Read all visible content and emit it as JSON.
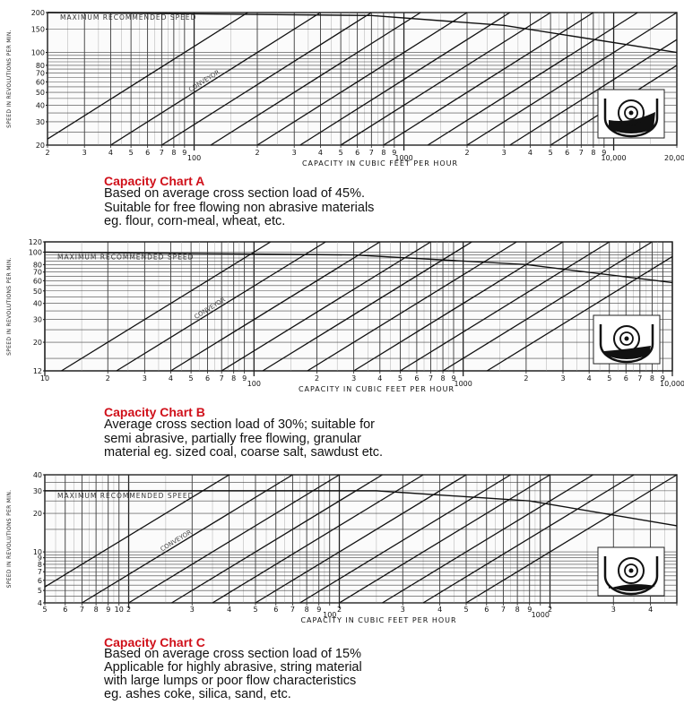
{
  "chart_data": [
    {
      "id": "A",
      "type": "line",
      "x_scale": "log",
      "y_scale": "log",
      "xlim": [
        20,
        20000
      ],
      "ylim": [
        20,
        200
      ],
      "xlabel": "CAPACITY IN CUBIC FEET PER HOUR",
      "ylabel": "SPEED IN REVOLUTIONS PER MIN.",
      "x_tick_labels": [
        "2",
        "3",
        "4",
        "5",
        "6",
        "7",
        "8",
        "9",
        "100",
        "2",
        "3",
        "4",
        "5",
        "6",
        "7",
        "8",
        "9",
        "1000",
        "2",
        "3",
        "4",
        "5",
        "6",
        "7",
        "8",
        "9",
        "10,000",
        "20,000"
      ],
      "y_tick_labels": [
        "200",
        "150",
        "100",
        "80",
        "70",
        "60",
        "50",
        "40",
        "30",
        "20"
      ],
      "max_speed_label": "MAXIMUM RECOMMENDED SPEED",
      "diagonal_label": "CONVEYOR",
      "max_speed_curve": [
        [
          20,
          200
        ],
        [
          700,
          190
        ],
        [
          3000,
          160
        ],
        [
          20000,
          100
        ]
      ],
      "diagonal_intercepts": [
        18,
        40,
        70,
        120,
        200,
        320,
        500,
        800,
        1300,
        2000,
        3200,
        5000
      ],
      "caption_title": "Capacity Chart A",
      "caption_lines": [
        "Based on average cross section load of 45%.",
        "Suitable for free flowing non abrasive materials",
        "eg. flour, corn-meal, wheat, etc."
      ]
    },
    {
      "id": "B",
      "type": "line",
      "x_scale": "log",
      "y_scale": "log",
      "xlim": [
        10,
        10000
      ],
      "ylim": [
        12,
        120
      ],
      "xlabel": "CAPACITY IN CUBIC FEET PER HOUR",
      "ylabel": "SPEED IN REVOLUTIONS PER MIN.",
      "x_tick_labels": [
        "10",
        "2",
        "3",
        "4",
        "5",
        "6",
        "7",
        "8",
        "9",
        "100",
        "2",
        "3",
        "4",
        "5",
        "6",
        "7",
        "8",
        "9",
        "1000",
        "2",
        "3",
        "4",
        "5",
        "6",
        "7",
        "8",
        "9",
        "10,000"
      ],
      "y_tick_labels": [
        "120",
        "100",
        "80",
        "70",
        "60",
        "50",
        "40",
        "30",
        "20",
        "12"
      ],
      "max_speed_label": "MAXIMUM RECOMMENDED SPEED",
      "diagonal_label": "CONVEYOR",
      "max_speed_curve": [
        [
          10,
          100
        ],
        [
          300,
          95
        ],
        [
          2000,
          80
        ],
        [
          10000,
          58
        ]
      ],
      "diagonal_intercepts": [
        12,
        22,
        40,
        70,
        110,
        180,
        300,
        500,
        800,
        1300
      ],
      "caption_title": "Capacity Chart B",
      "caption_lines": [
        "Average cross section load of 30%; suitable for",
        "semi abrasive, partially free flowing, granular",
        "material eg. sized coal, coarse salt, sawdust etc."
      ]
    },
    {
      "id": "C",
      "type": "line",
      "x_scale": "log",
      "y_scale": "log",
      "xlim": [
        4,
        4000
      ],
      "ylim": [
        4,
        40
      ],
      "xlabel": "CAPACITY IN CUBIC FEET PER HOUR",
      "ylabel": "SPEED IN REVOLUTIONS PER MIN.",
      "x_tick_labels": [
        "5",
        "6",
        "7",
        "8",
        "9",
        "10",
        "2",
        "3",
        "4",
        "5",
        "6",
        "7",
        "8",
        "9",
        "100",
        "2",
        "3",
        "4",
        "5",
        "6",
        "7",
        "8",
        "9",
        "1000",
        "2",
        "3",
        "4"
      ],
      "y_tick_labels": [
        "40",
        "30",
        "20",
        "10",
        "9",
        "8",
        "7",
        "6",
        "5",
        "4"
      ],
      "max_speed_label": "MAXIMUM RECOMMENDED SPEED",
      "diagonal_label": "CONVEYOR",
      "max_speed_curve": [
        [
          4,
          30
        ],
        [
          150,
          30
        ],
        [
          800,
          25
        ],
        [
          4000,
          16
        ]
      ],
      "diagonal_intercepts": [
        3,
        6,
        10,
        16,
        25,
        40,
        65,
        100,
        160,
        250,
        400
      ],
      "caption_title": "Capacity Chart C",
      "caption_lines": [
        "Based on average cross section load of 15%",
        "Applicable for highly abrasive, string material",
        "with large lumps or poor flow characteristics",
        "eg. ashes coke, silica, sand, etc."
      ]
    }
  ]
}
